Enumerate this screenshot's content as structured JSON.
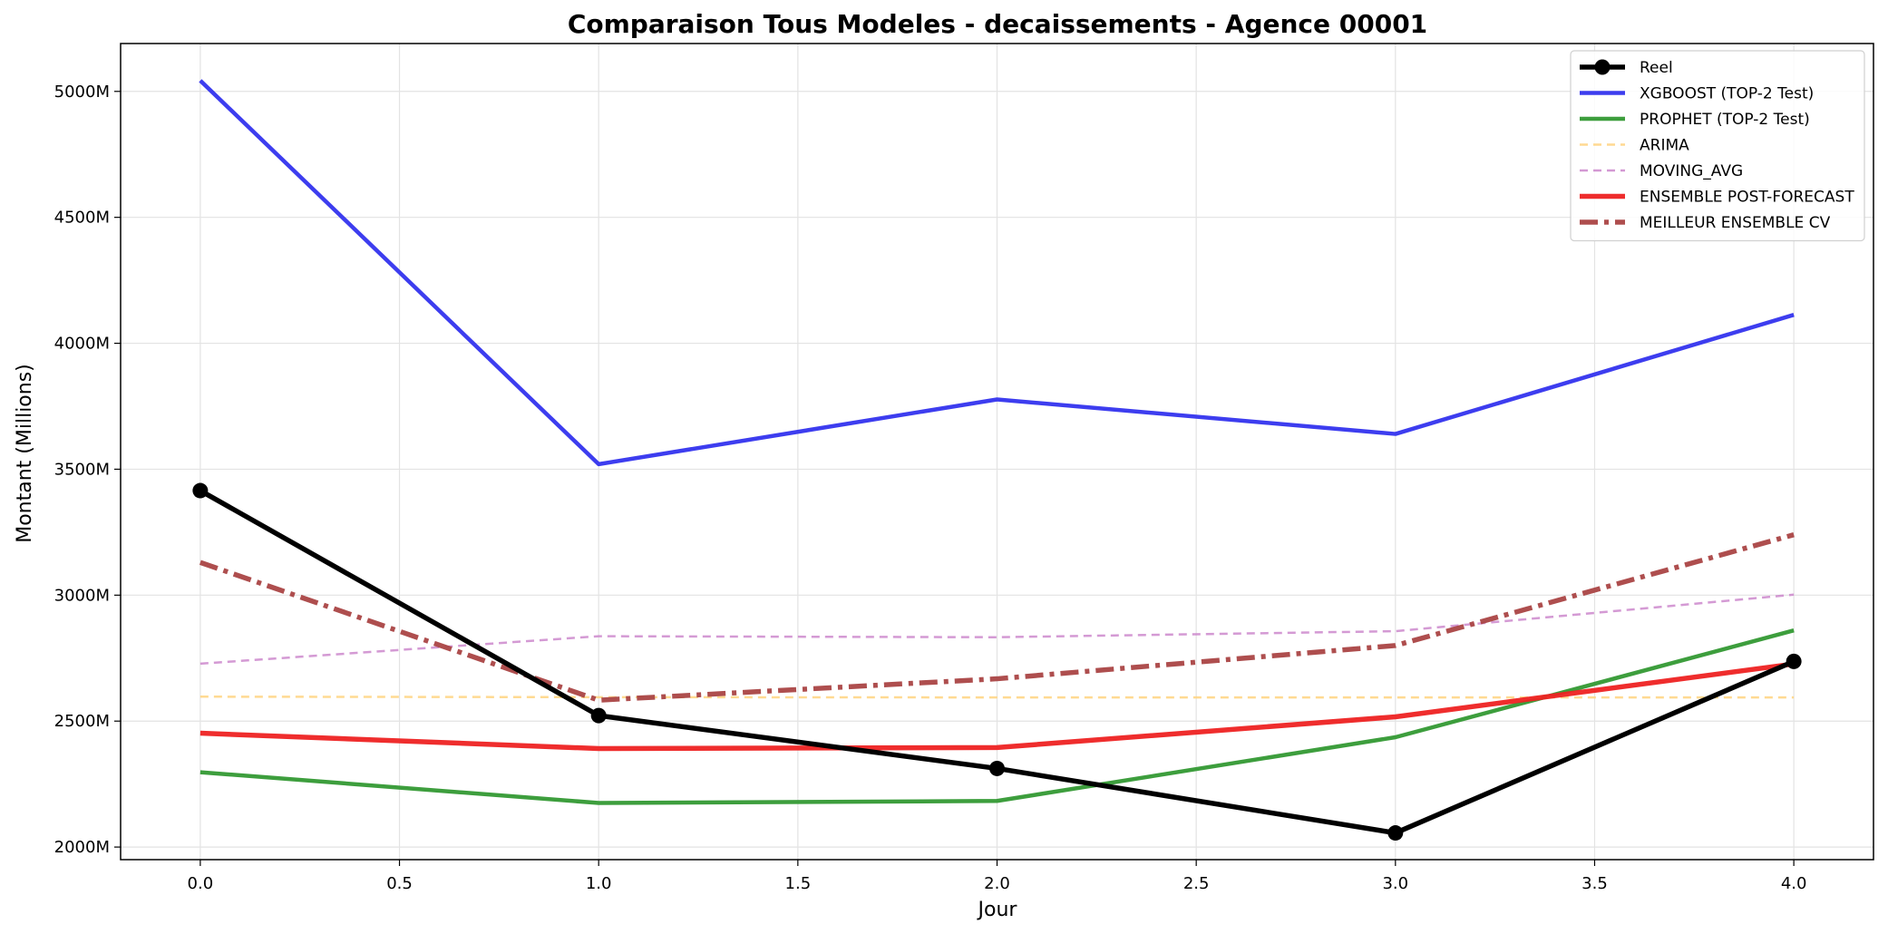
{
  "chart_data": {
    "type": "line",
    "title": "Comparaison Tous Modeles - decaissements - Agence 00001",
    "xlabel": "Jour",
    "ylabel": "Montant (Millions)",
    "xlim": [
      -0.2,
      4.2
    ],
    "ylim": [
      1950,
      5190
    ],
    "xticks": [
      0.0,
      0.5,
      1.0,
      1.5,
      2.0,
      2.5,
      3.0,
      3.5,
      4.0
    ],
    "xtick_labels": [
      "0.0",
      "0.5",
      "1.0",
      "1.5",
      "2.0",
      "2.5",
      "3.0",
      "3.5",
      "4.0"
    ],
    "yticks": [
      2000,
      2500,
      3000,
      3500,
      4000,
      4500,
      5000
    ],
    "ytick_labels": [
      "2000M",
      "2500M",
      "3000M",
      "3500M",
      "4000M",
      "4500M",
      "5000M"
    ],
    "grid": true,
    "legend_position": "top-right",
    "x": [
      0,
      1,
      2,
      3,
      4
    ],
    "series": [
      {
        "name": "Reel",
        "values": [
          3415,
          2522,
          2312,
          2056,
          2737
        ],
        "color": "#000000",
        "style": "solid",
        "markers": true,
        "width": "thick"
      },
      {
        "name": "XGBOOST (TOP-2 Test)",
        "values": [
          5043,
          3520,
          3777,
          3640,
          4113
        ],
        "color": "#3333ee",
        "style": "solid",
        "markers": false,
        "width": "medium"
      },
      {
        "name": "PROPHET (TOP-2 Test)",
        "values": [
          2297,
          2175,
          2183,
          2436,
          2860
        ],
        "color": "#339933",
        "style": "solid",
        "markers": false,
        "width": "medium"
      },
      {
        "name": "ARIMA",
        "values": [
          2597,
          2595,
          2594,
          2594,
          2594
        ],
        "color": "#ffd37f",
        "style": "dashed",
        "markers": false,
        "width": "thin"
      },
      {
        "name": "MOVING_AVG",
        "values": [
          2728,
          2837,
          2833,
          2857,
          3002
        ],
        "color": "#cc88cc",
        "style": "dashed",
        "markers": false,
        "width": "thin"
      },
      {
        "name": "ENSEMBLE POST-FORECAST",
        "values": [
          2452,
          2391,
          2395,
          2517,
          2727
        ],
        "color": "#ee2222",
        "style": "solid",
        "markers": false,
        "width": "thick"
      },
      {
        "name": "MEILLEUR ENSEMBLE CV",
        "values": [
          3130,
          2583,
          2668,
          2800,
          3240
        ],
        "color": "#aa4444",
        "style": "dashdot",
        "markers": false,
        "width": "thick"
      }
    ]
  }
}
